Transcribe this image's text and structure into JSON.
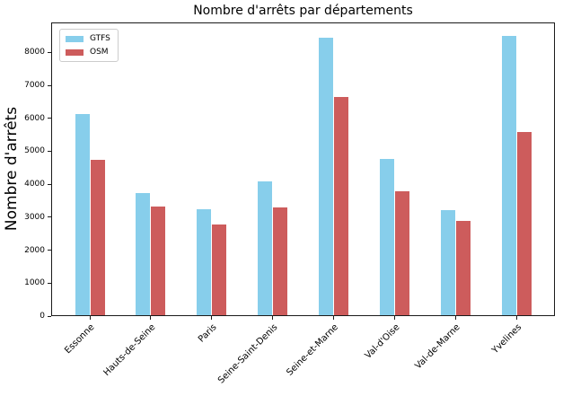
{
  "chart_data": {
    "type": "bar",
    "title": "Nombre d'arrêts par départements",
    "ylabel": "Nombre d'arrêts",
    "xlabel": "",
    "categories": [
      "Essonne",
      "Hauts-de-Seine",
      "Paris",
      "Seine-Saint-Denis",
      "Seine-et-Marne",
      "Val-d'Oise",
      "Val-de-Marne",
      "Yvelines"
    ],
    "series": [
      {
        "name": "GTFS",
        "color": "#87CEEB",
        "values": [
          6140,
          3730,
          3240,
          4080,
          8440,
          4780,
          3210,
          8490
        ]
      },
      {
        "name": "OSM",
        "color": "#CD5C5C",
        "values": [
          4750,
          3320,
          2780,
          3300,
          6660,
          3780,
          2890,
          5580
        ]
      }
    ],
    "ylim": [
      0,
      8910
    ],
    "yticks": [
      0,
      1000,
      2000,
      3000,
      4000,
      5000,
      6000,
      7000,
      8000
    ],
    "grid": false,
    "legend_position": "upper left",
    "x_tick_rotation": 45
  }
}
